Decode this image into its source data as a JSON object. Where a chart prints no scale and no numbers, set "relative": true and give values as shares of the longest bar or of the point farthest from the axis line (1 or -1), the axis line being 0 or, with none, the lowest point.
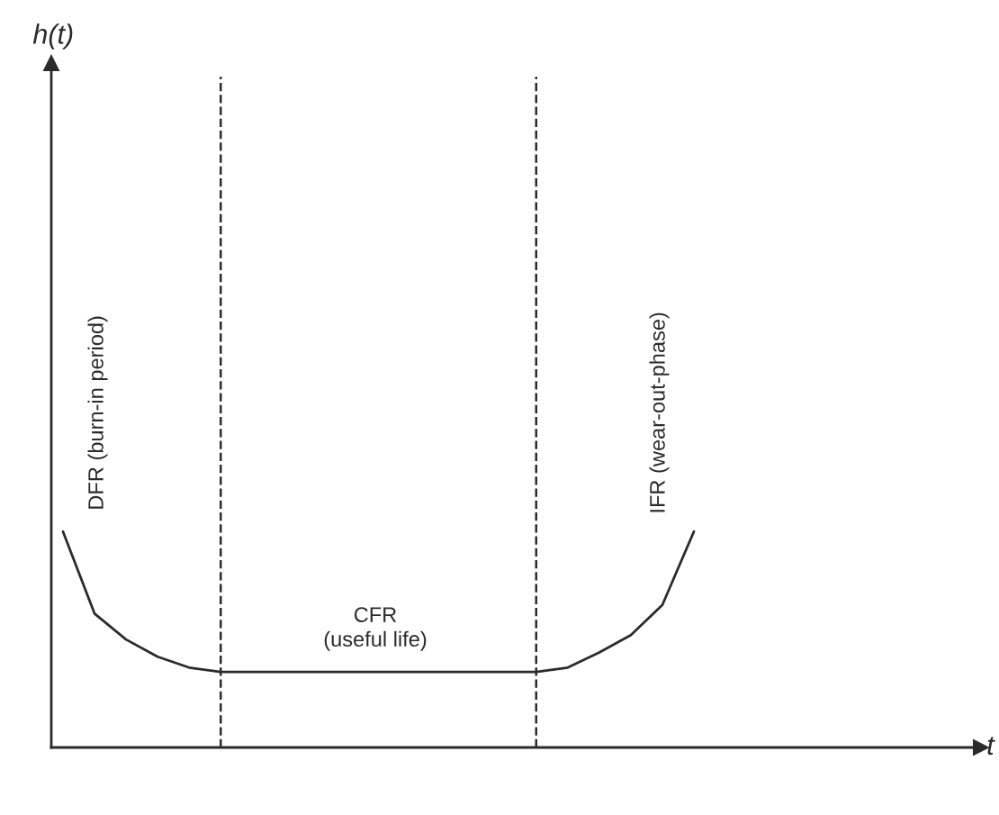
{
  "chart_data": {
    "type": "line",
    "relative": true,
    "categories": [
      null,
      null,
      null,
      null,
      null,
      null,
      null,
      null,
      null,
      null,
      null,
      null,
      null,
      null,
      null,
      null,
      null,
      null,
      null,
      null,
      null
    ],
    "series": [
      {
        "color": "#2b2b2b",
        "values": [
          1,
          0.62,
          0.5,
          0.42,
          0.37,
          0.35,
          0.35,
          0.35,
          0.35,
          0.35,
          0.35,
          0.35,
          0.35,
          0.35,
          0.35,
          0.35,
          0.37,
          0.44,
          0.52,
          0.66,
          1
        ]
      }
    ],
    "annotations": [
      "h(t)",
      "t",
      "DFR (burn-in period)",
      "CFR\n(useful life)",
      "IFR (wear-out-phase)"
    ],
    "marker": "none",
    "line_style": "solid"
  }
}
